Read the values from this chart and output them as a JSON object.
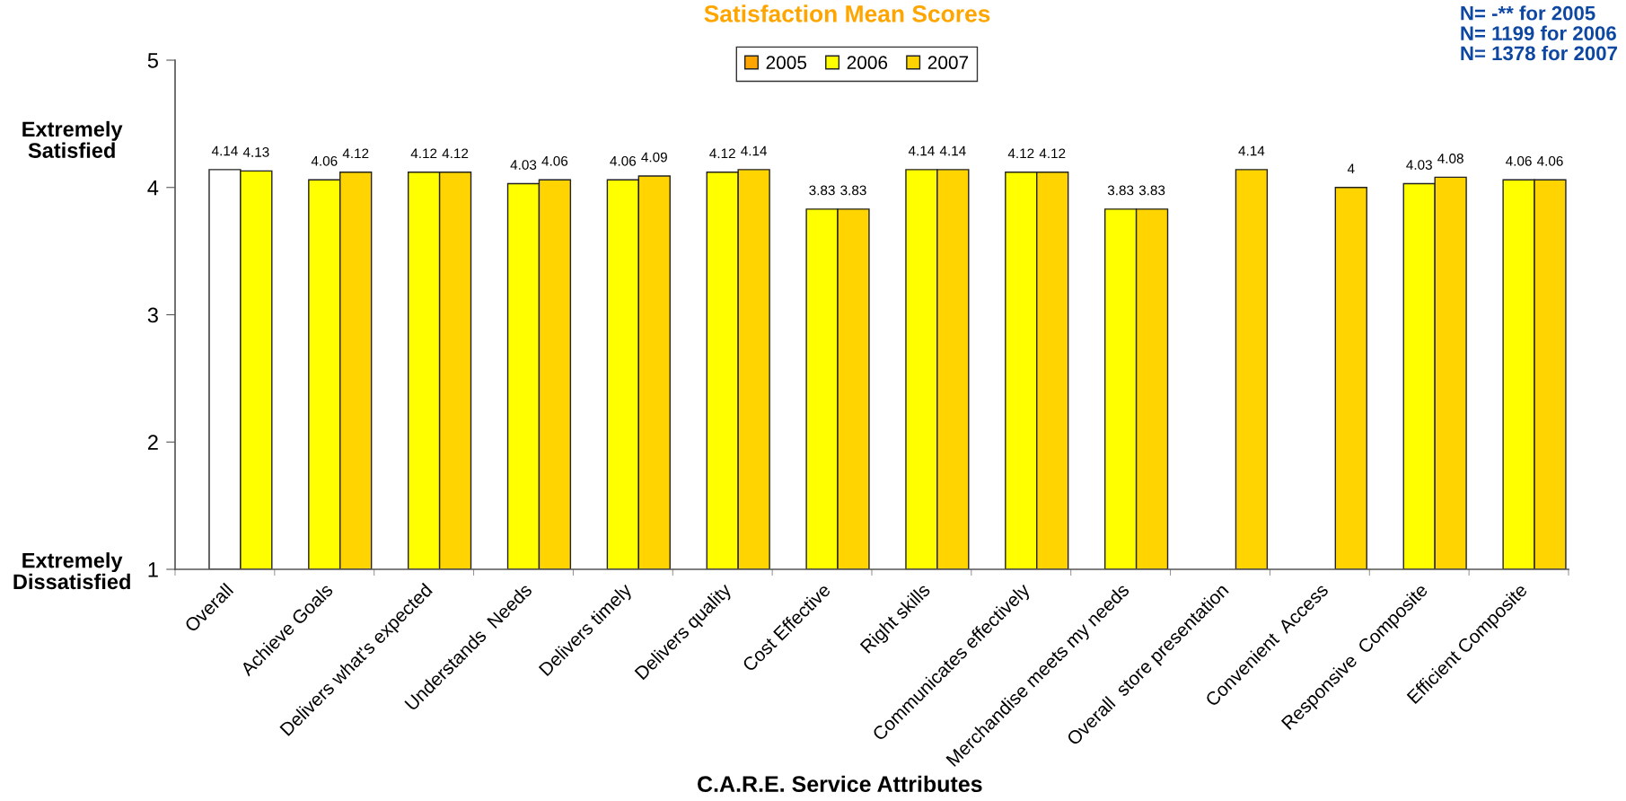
{
  "chart_data": {
    "type": "bar",
    "title": "Satisfaction Mean Scores",
    "xlabel": "C.A.R.E. Service Attributes",
    "annotations": [
      "N= -** for 2005\nN= 1199 for 2006\nN= 1378 for 2007",
      "Extremely\nSatisfied",
      "Extremely\nDissatisfied"
    ],
    "categories": [
      "Overall",
      "Achieve Goals",
      "Delivers what's expected",
      "Understands  Needs",
      "Delivers timely",
      "Delivers quality",
      "Cost Effective",
      "Right skills",
      "Communicates effectively",
      "Merchandise meets my needs",
      "Overall  store presentation",
      "Convenient  Access",
      "Responsive  Composite",
      "Efficient Composite"
    ],
    "series": [
      {
        "name": "2005",
        "color": "#ffa500",
        "values": [
          null,
          null,
          null,
          null,
          null,
          null,
          null,
          null,
          null,
          null,
          null,
          null,
          null,
          null
        ]
      },
      {
        "name": "2006",
        "color": "#ffff00",
        "colors": [
          "#ffffff",
          "#ffff00",
          "#ffff00",
          "#ffff00",
          "#ffff00",
          "#ffff00",
          "#ffff00",
          "#ffff00",
          "#ffff00",
          "#ffff00",
          "#ffff00",
          "#ffff00",
          "#ffff00",
          "#ffff00"
        ],
        "values": [
          4.14,
          4.06,
          4.12,
          4.03,
          4.06,
          4.12,
          3.83,
          4.14,
          4.12,
          3.83,
          null,
          null,
          4.03,
          4.06
        ]
      },
      {
        "name": "2007",
        "color": "#ffd400",
        "colors": [
          "#ffff00",
          "#ffd400",
          "#ffd400",
          "#ffd400",
          "#ffd400",
          "#ffd400",
          "#ffd400",
          "#ffd400",
          "#ffd400",
          "#ffd400",
          "#ffd400",
          "#ffd400",
          "#ffd400",
          "#ffd400"
        ],
        "values": [
          4.13,
          4.12,
          4.12,
          4.06,
          4.09,
          4.14,
          3.83,
          4.14,
          4.12,
          3.83,
          4.14,
          4,
          4.08,
          4.06
        ]
      }
    ],
    "ylim": [
      1,
      5
    ],
    "yticks": [
      1,
      2,
      3,
      4,
      5
    ],
    "legend": "top",
    "data_labels": true
  }
}
